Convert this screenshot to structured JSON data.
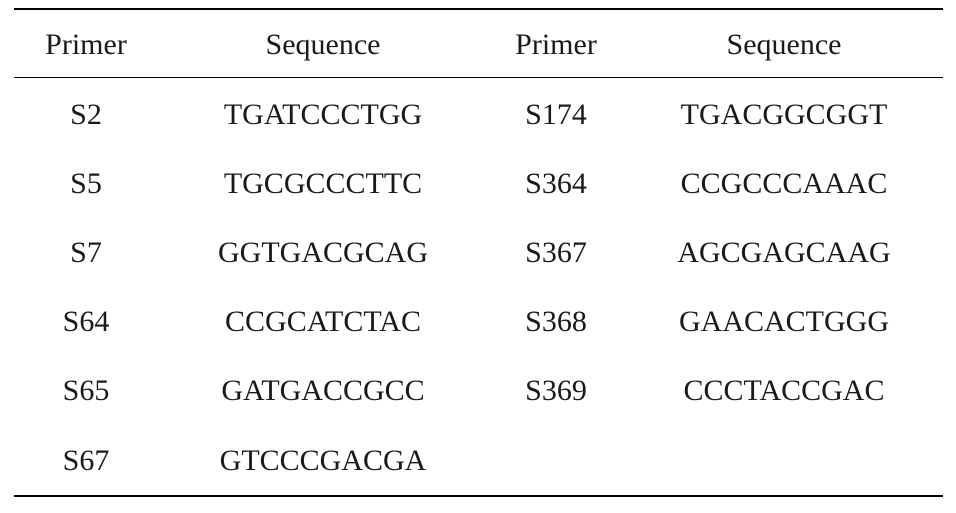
{
  "table": {
    "headers": [
      "Primer",
      "Sequence",
      "Primer",
      "Sequence"
    ],
    "rows": [
      [
        "S2",
        "TGATCCCTGG",
        "S174",
        "TGACGGCGGT"
      ],
      [
        "S5",
        "TGCGCCCTTC",
        "S364",
        "CCGCCCAAAC"
      ],
      [
        "S7",
        "GGTGACGCAG",
        "S367",
        "AGCGAGCAAG"
      ],
      [
        "S64",
        "CCGCATCTAC",
        "S368",
        "GAACACTGGG"
      ],
      [
        "S65",
        "GATGACCGCC",
        "S369",
        "CCCTACCGAC"
      ],
      [
        "S67",
        "GTCCCGACGA",
        "",
        ""
      ]
    ]
  }
}
